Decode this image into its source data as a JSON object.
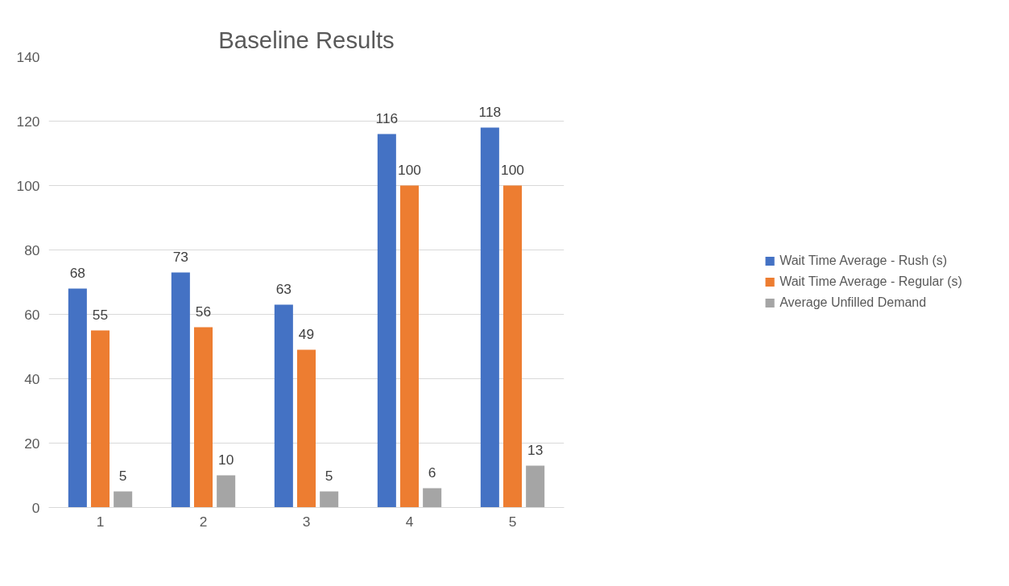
{
  "chart_data": {
    "type": "bar",
    "title": "Baseline Results",
    "categories": [
      "1",
      "2",
      "3",
      "4",
      "5"
    ],
    "series": [
      {
        "name": "Wait Time Average - Rush (s)",
        "color": "#4472c4",
        "values": [
          68,
          73,
          63,
          116,
          118
        ]
      },
      {
        "name": "Wait Time Average - Regular (s)",
        "color": "#ed7d31",
        "values": [
          55,
          56,
          49,
          100,
          100
        ]
      },
      {
        "name": "Average Unfilled Demand",
        "color": "#a5a5a5",
        "values": [
          5,
          10,
          5,
          6,
          13
        ]
      }
    ],
    "ylim": [
      0,
      140
    ],
    "yticks": [
      0,
      20,
      40,
      60,
      80,
      100,
      120,
      140
    ],
    "grid": "y",
    "legend": "right",
    "data_labels": true
  }
}
